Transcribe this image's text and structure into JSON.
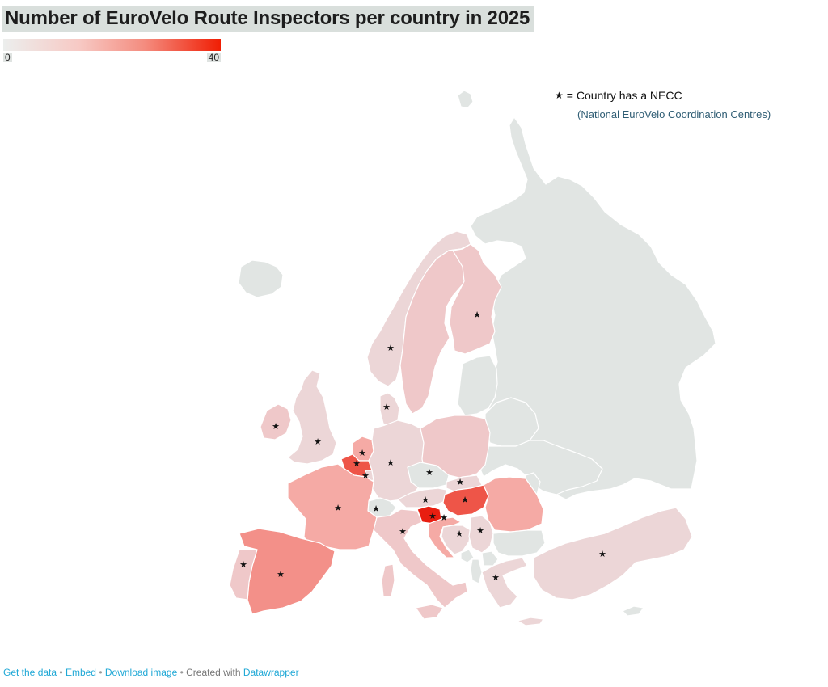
{
  "title": "Number of EuroVelo Route Inspectors per country in 2025",
  "legend": {
    "min": "0",
    "max": "40",
    "colors": [
      "#eceeed",
      "#f7c9c4",
      "#f48c7f",
      "#f01e04"
    ]
  },
  "key": {
    "star": "★",
    "label": "= Country has a NECC",
    "sub": "(National EuroVelo Coordination Centres)"
  },
  "colors": {
    "no_data": "#e1e5e3",
    "light": "#ecd6d7",
    "low": "#efc8c9",
    "mid": "#f5aaa5",
    "mid_high": "#f39089",
    "high": "#ee5548",
    "max": "#e81e10",
    "star": "#111111",
    "link": "#1fa8d6"
  },
  "countries": [
    {
      "name": "Iceland",
      "fill": "no_data",
      "necc": false
    },
    {
      "name": "Ireland",
      "fill": "low",
      "necc": true
    },
    {
      "name": "United Kingdom",
      "fill": "light",
      "necc": true
    },
    {
      "name": "Norway",
      "fill": "light",
      "necc": true
    },
    {
      "name": "Sweden",
      "fill": "low",
      "necc": false
    },
    {
      "name": "Finland",
      "fill": "low",
      "necc": true
    },
    {
      "name": "Denmark",
      "fill": "light",
      "necc": true
    },
    {
      "name": "Netherlands",
      "fill": "mid",
      "necc": true
    },
    {
      "name": "Belgium",
      "fill": "high",
      "necc": true
    },
    {
      "name": "Luxembourg",
      "fill": "light",
      "necc": true
    },
    {
      "name": "Germany",
      "fill": "light",
      "necc": true
    },
    {
      "name": "Poland",
      "fill": "low",
      "necc": false
    },
    {
      "name": "Czechia",
      "fill": "no_data",
      "necc": true
    },
    {
      "name": "Slovakia",
      "fill": "light",
      "necc": true
    },
    {
      "name": "Austria",
      "fill": "light",
      "necc": true
    },
    {
      "name": "Switzerland",
      "fill": "no_data",
      "necc": true
    },
    {
      "name": "Hungary",
      "fill": "high",
      "necc": true
    },
    {
      "name": "Slovenia",
      "fill": "max",
      "necc": true
    },
    {
      "name": "Croatia",
      "fill": "mid",
      "necc": true
    },
    {
      "name": "Bosnia and Herzegovina",
      "fill": "light",
      "necc": true
    },
    {
      "name": "Serbia",
      "fill": "light",
      "necc": true
    },
    {
      "name": "Romania",
      "fill": "mid",
      "necc": false
    },
    {
      "name": "Bulgaria",
      "fill": "no_data",
      "necc": false
    },
    {
      "name": "Greece",
      "fill": "light",
      "necc": true
    },
    {
      "name": "Turkey",
      "fill": "light",
      "necc": true
    },
    {
      "name": "France",
      "fill": "mid",
      "necc": true
    },
    {
      "name": "Spain",
      "fill": "mid_high",
      "necc": true
    },
    {
      "name": "Portugal",
      "fill": "low",
      "necc": true
    },
    {
      "name": "Italy",
      "fill": "low",
      "necc": true
    },
    {
      "name": "Baltics",
      "fill": "no_data",
      "necc": false
    },
    {
      "name": "Belarus",
      "fill": "no_data",
      "necc": false
    },
    {
      "name": "Ukraine",
      "fill": "no_data",
      "necc": false
    },
    {
      "name": "Russia",
      "fill": "no_data",
      "necc": false
    },
    {
      "name": "Moldova",
      "fill": "no_data",
      "necc": false
    },
    {
      "name": "North Macedonia",
      "fill": "no_data",
      "necc": false
    },
    {
      "name": "Albania",
      "fill": "no_data",
      "necc": false
    },
    {
      "name": "Montenegro",
      "fill": "no_data",
      "necc": false
    },
    {
      "name": "Svalbard",
      "fill": "no_data",
      "necc": false
    },
    {
      "name": "Cyprus",
      "fill": "no_data",
      "necc": false
    }
  ],
  "footer": {
    "get_data": "Get the data",
    "embed": "Embed",
    "download": "Download image",
    "created": "Created with",
    "tool": "Datawrapper",
    "sep": "•"
  }
}
